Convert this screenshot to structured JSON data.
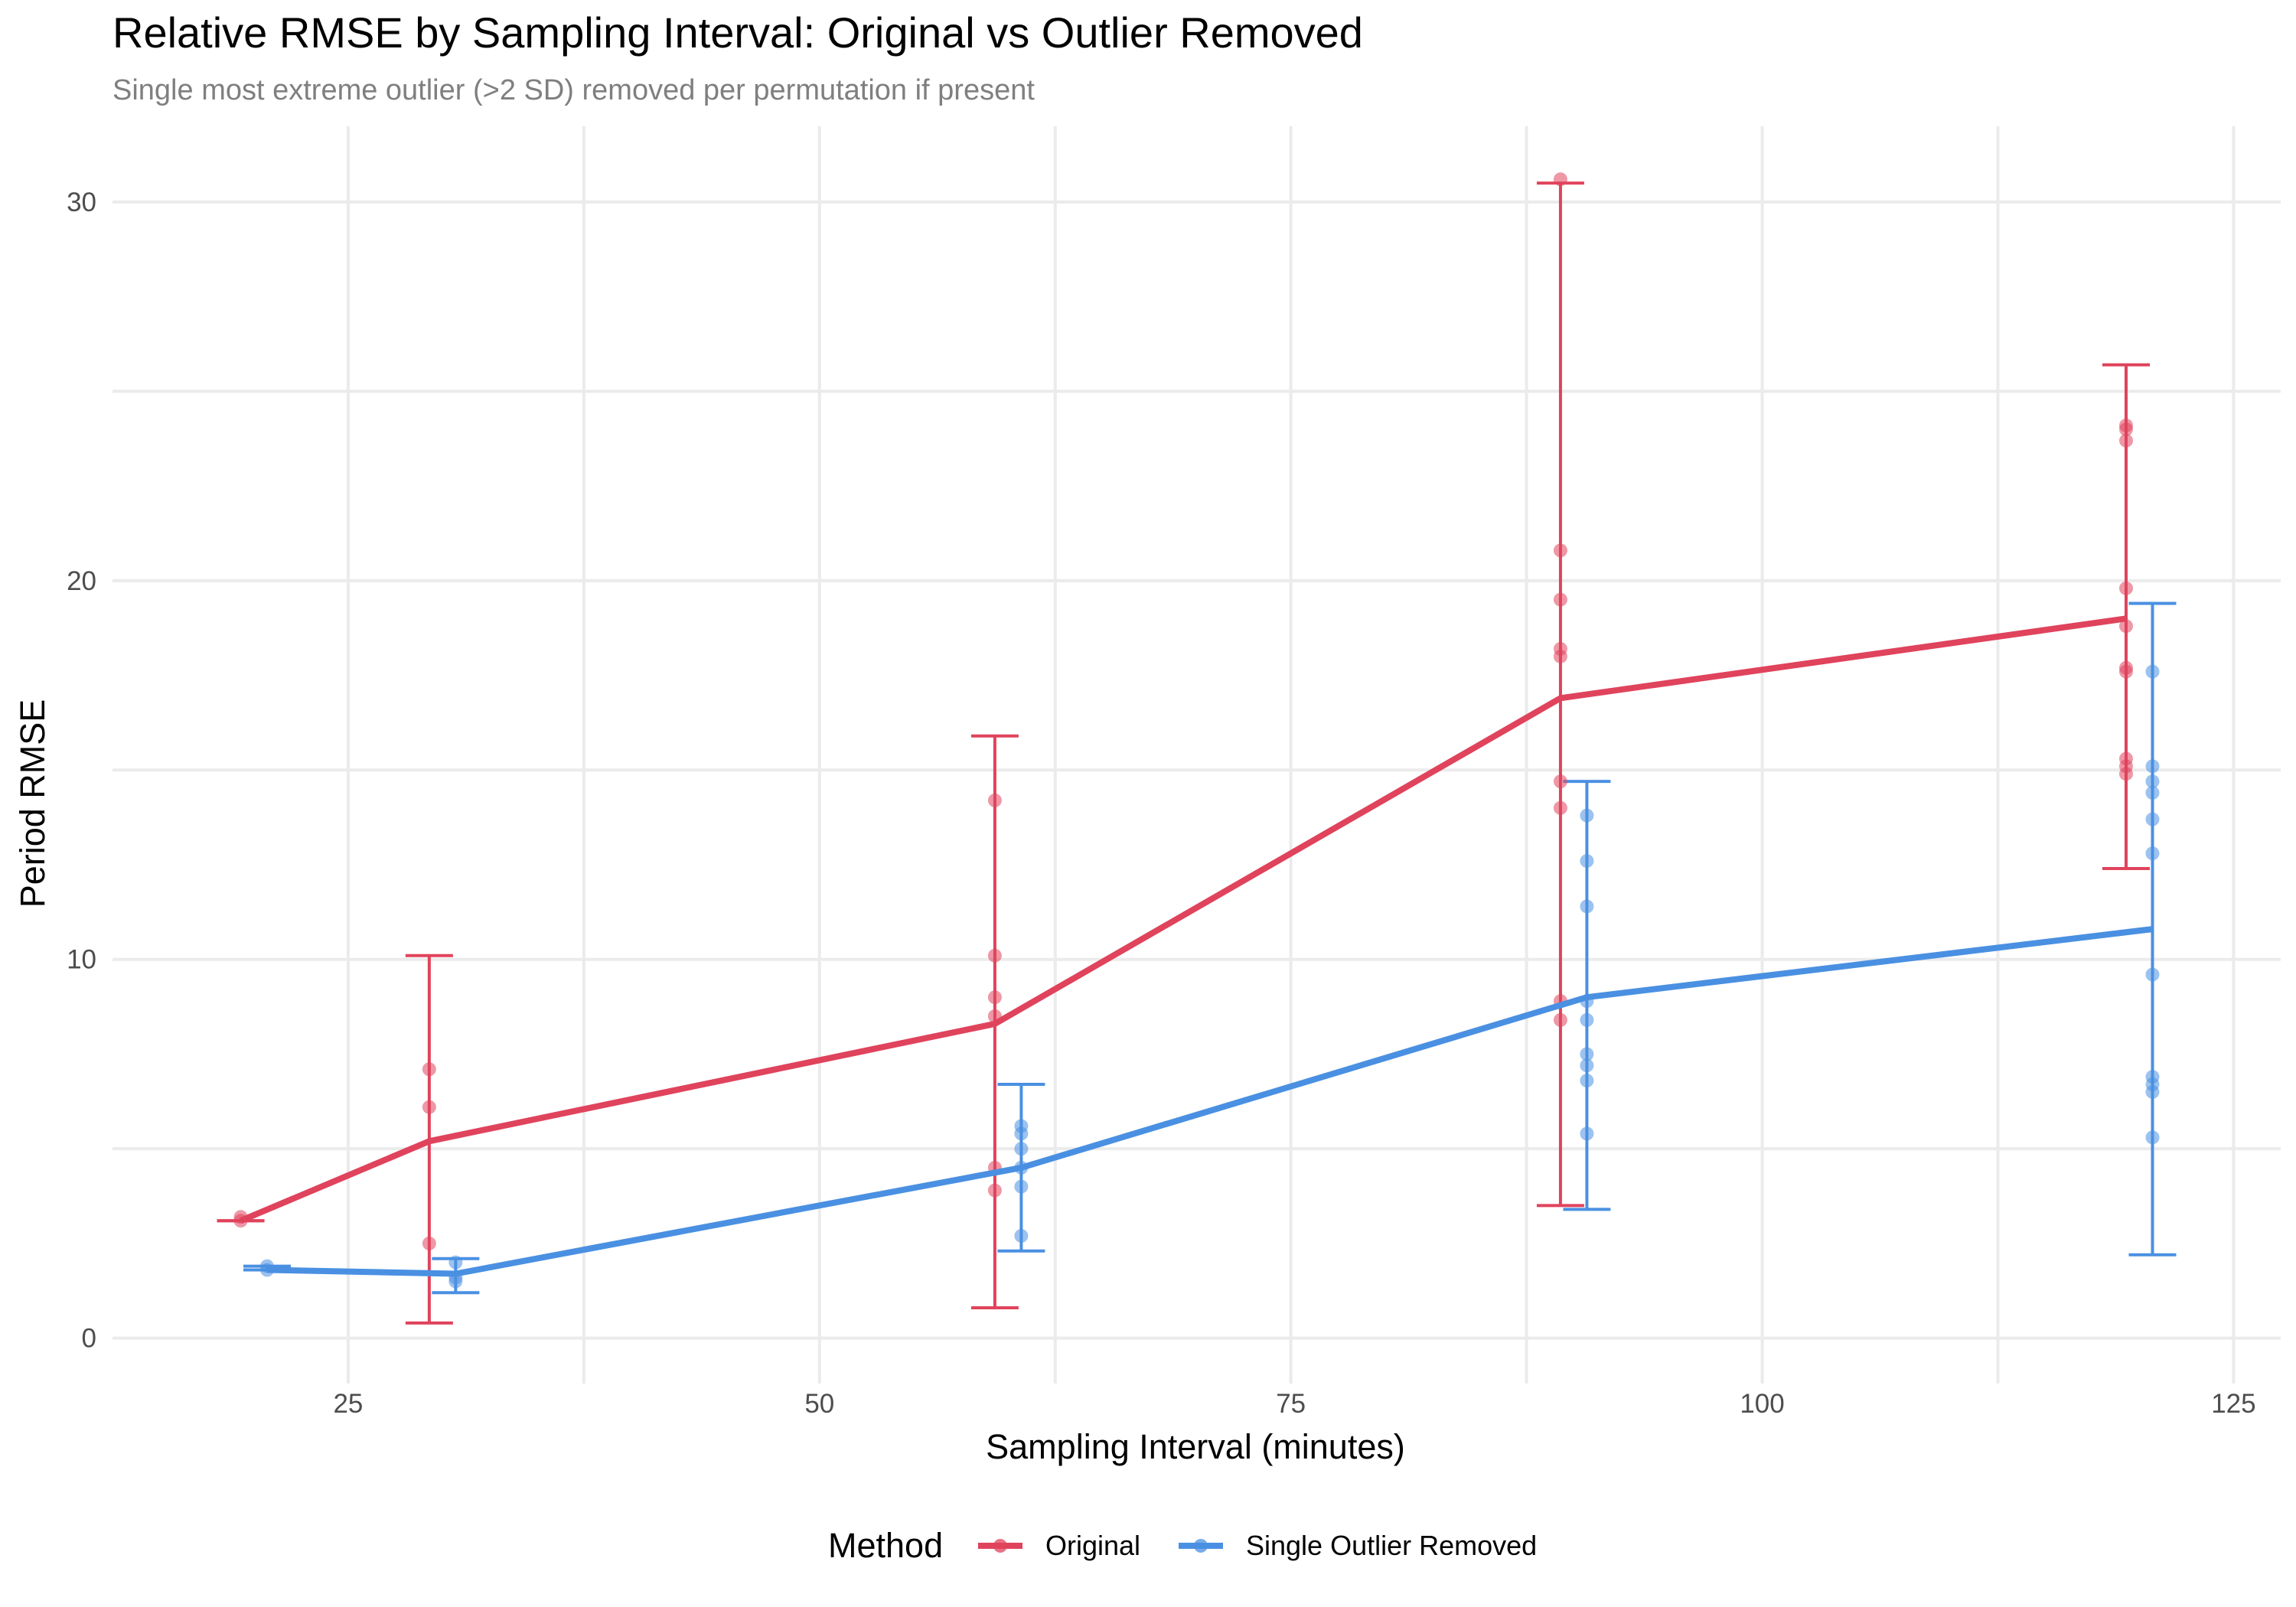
{
  "chart_data": {
    "type": "line",
    "title": "Relative RMSE by Sampling Interval: Original vs Outlier Removed",
    "subtitle": "Single most extreme outlier (>2 SD) removed per permutation if present",
    "xlabel": "Sampling Interval (minutes)",
    "ylabel": "Period RMSE",
    "xlim": [
      12.5,
      127.5
    ],
    "ylim": [
      -1.2,
      32
    ],
    "x_ticks": [
      25,
      50,
      75,
      100,
      125
    ],
    "y_ticks": [
      0,
      10,
      20,
      30
    ],
    "grid": true,
    "legend": {
      "title": "Method",
      "position": "bottom"
    },
    "series": [
      {
        "name": "Original",
        "color": "#E0435C",
        "mean": [
          {
            "x": 19.3,
            "y": 3.1
          },
          {
            "x": 29.3,
            "y": 5.2
          },
          {
            "x": 59.3,
            "y": 8.3
          },
          {
            "x": 89.3,
            "y": 16.9
          },
          {
            "x": 119.3,
            "y": 19.0
          }
        ],
        "error_bars": [
          {
            "x": 19.3,
            "low": 3.1,
            "high": 3.1
          },
          {
            "x": 29.3,
            "low": 0.4,
            "high": 10.1
          },
          {
            "x": 59.3,
            "low": 0.8,
            "high": 15.9
          },
          {
            "x": 89.3,
            "low": 3.5,
            "high": 30.5
          },
          {
            "x": 119.3,
            "low": 12.4,
            "high": 25.7
          }
        ],
        "points": [
          {
            "x": 19.3,
            "y": 3.1
          },
          {
            "x": 19.3,
            "y": 3.2
          },
          {
            "x": 29.3,
            "y": 2.5
          },
          {
            "x": 29.3,
            "y": 6.1
          },
          {
            "x": 29.3,
            "y": 7.1
          },
          {
            "x": 59.3,
            "y": 3.9
          },
          {
            "x": 59.3,
            "y": 4.5
          },
          {
            "x": 59.3,
            "y": 8.5
          },
          {
            "x": 59.3,
            "y": 9.0
          },
          {
            "x": 59.3,
            "y": 10.1
          },
          {
            "x": 59.3,
            "y": 14.2
          },
          {
            "x": 89.3,
            "y": 8.4
          },
          {
            "x": 89.3,
            "y": 8.9
          },
          {
            "x": 89.3,
            "y": 14.0
          },
          {
            "x": 89.3,
            "y": 14.7
          },
          {
            "x": 89.3,
            "y": 18.0
          },
          {
            "x": 89.3,
            "y": 18.2
          },
          {
            "x": 89.3,
            "y": 19.5
          },
          {
            "x": 89.3,
            "y": 20.8
          },
          {
            "x": 89.3,
            "y": 30.6
          },
          {
            "x": 119.3,
            "y": 14.9
          },
          {
            "x": 119.3,
            "y": 15.1
          },
          {
            "x": 119.3,
            "y": 15.3
          },
          {
            "x": 119.3,
            "y": 17.6
          },
          {
            "x": 119.3,
            "y": 17.7
          },
          {
            "x": 119.3,
            "y": 18.8
          },
          {
            "x": 119.3,
            "y": 19.8
          },
          {
            "x": 119.3,
            "y": 23.7
          },
          {
            "x": 119.3,
            "y": 24.0
          },
          {
            "x": 119.3,
            "y": 24.1
          }
        ]
      },
      {
        "name": "Single Outlier Removed",
        "color": "#4A90E2",
        "mean": [
          {
            "x": 20.7,
            "y": 1.8
          },
          {
            "x": 30.7,
            "y": 1.7
          },
          {
            "x": 60.7,
            "y": 4.5
          },
          {
            "x": 90.7,
            "y": 9.0
          },
          {
            "x": 120.7,
            "y": 10.8
          }
        ],
        "error_bars": [
          {
            "x": 20.7,
            "low": 1.8,
            "high": 1.9
          },
          {
            "x": 30.7,
            "low": 1.2,
            "high": 2.1
          },
          {
            "x": 60.7,
            "low": 2.3,
            "high": 6.7
          },
          {
            "x": 90.7,
            "low": 3.4,
            "high": 14.7
          },
          {
            "x": 120.7,
            "low": 2.2,
            "high": 19.4
          }
        ],
        "points": [
          {
            "x": 20.7,
            "y": 1.8
          },
          {
            "x": 20.7,
            "y": 1.9
          },
          {
            "x": 30.7,
            "y": 1.5
          },
          {
            "x": 30.7,
            "y": 1.6
          },
          {
            "x": 30.7,
            "y": 2.0
          },
          {
            "x": 60.7,
            "y": 2.7
          },
          {
            "x": 60.7,
            "y": 4.0
          },
          {
            "x": 60.7,
            "y": 4.5
          },
          {
            "x": 60.7,
            "y": 5.0
          },
          {
            "x": 60.7,
            "y": 5.4
          },
          {
            "x": 60.7,
            "y": 5.6
          },
          {
            "x": 90.7,
            "y": 5.4
          },
          {
            "x": 90.7,
            "y": 6.8
          },
          {
            "x": 90.7,
            "y": 7.2
          },
          {
            "x": 90.7,
            "y": 7.5
          },
          {
            "x": 90.7,
            "y": 8.4
          },
          {
            "x": 90.7,
            "y": 8.9
          },
          {
            "x": 90.7,
            "y": 11.4
          },
          {
            "x": 90.7,
            "y": 12.6
          },
          {
            "x": 90.7,
            "y": 13.8
          },
          {
            "x": 120.7,
            "y": 5.3
          },
          {
            "x": 120.7,
            "y": 6.5
          },
          {
            "x": 120.7,
            "y": 6.7
          },
          {
            "x": 120.7,
            "y": 6.9
          },
          {
            "x": 120.7,
            "y": 9.6
          },
          {
            "x": 120.7,
            "y": 12.8
          },
          {
            "x": 120.7,
            "y": 13.7
          },
          {
            "x": 120.7,
            "y": 14.4
          },
          {
            "x": 120.7,
            "y": 14.7
          },
          {
            "x": 120.7,
            "y": 15.1
          },
          {
            "x": 120.7,
            "y": 17.6
          }
        ]
      }
    ]
  }
}
